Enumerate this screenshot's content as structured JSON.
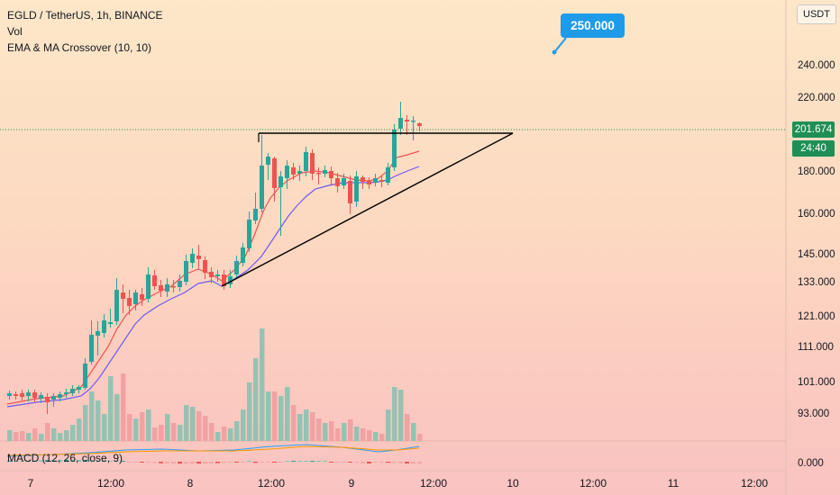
{
  "header": {
    "symbol_line": "EGLD / TetherUS, 1h, BINANCE",
    "vol_label": "Vol",
    "indicator_label": "EMA & MA Crossover (10, 10)",
    "macd_label": "MACD (12, 26, close, 9)"
  },
  "currency_button": "USDT",
  "target_callout": "250.000",
  "last_price": "201.674",
  "bar_countdown": "24:40",
  "price_axis": {
    "labels": [
      "240.000",
      "220.000",
      "180.000",
      "160.000",
      "145.000",
      "133.000",
      "121.000",
      "111.000",
      "101.000",
      "93.000"
    ],
    "macd_zero": "0.000"
  },
  "time_axis": {
    "labels": [
      "7",
      "12:00",
      "8",
      "12:00",
      "9",
      "12:00",
      "10",
      "12:00",
      "11",
      "12:00"
    ]
  },
  "colors": {
    "up": "#26a69a",
    "down": "#ef5350",
    "ema": "#ef5350",
    "ma": "#6b5cf0",
    "trendline": "#000000",
    "callout": "#1e9be9",
    "price_tag": "#1f8f55"
  },
  "chart_data": {
    "type": "candlestick",
    "pair": "EGLD / TetherUS",
    "interval": "1h",
    "exchange": "BINANCE",
    "y_ticks": [
      240,
      220,
      180,
      160,
      145,
      133,
      121,
      111,
      101,
      93
    ],
    "annotations": {
      "target": 250.0,
      "resistance_level": 198.5,
      "ascending_trendline": "from ~129 (Jan 8 ~04:00) to ~198.5 (Jan 10)"
    },
    "last_price": 201.674
  }
}
